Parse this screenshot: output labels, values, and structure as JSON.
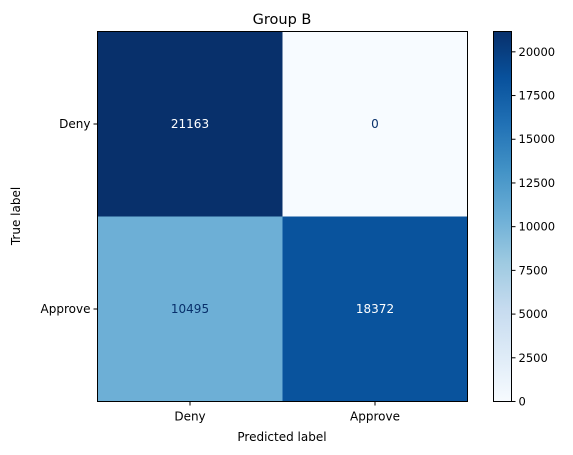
{
  "chart_data": {
    "type": "heatmap",
    "title": "Group B",
    "xlabel": "Predicted label",
    "ylabel": "True label",
    "x_categories": [
      "Deny",
      "Approve"
    ],
    "y_categories": [
      "Deny",
      "Approve"
    ],
    "values": [
      [
        21163,
        0
      ],
      [
        10495,
        18372
      ]
    ],
    "colormap": "Blues",
    "color_range": [
      0,
      21163
    ],
    "colorbar_ticks": [
      0,
      2500,
      5000,
      7500,
      10000,
      12500,
      15000,
      17500,
      20000
    ],
    "colors": {
      "low": "#f7fbff",
      "mid": "#6baed6",
      "high": "#08306b",
      "text_light": "#ffffff",
      "text_dark": "#08306b"
    }
  }
}
